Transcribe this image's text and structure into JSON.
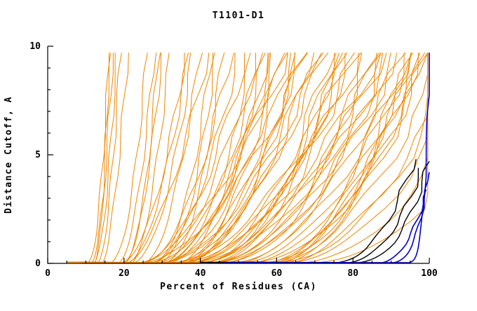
{
  "chart_data": {
    "type": "line",
    "title": "T1101-D1",
    "xlabel": "Percent of Residues (CA)",
    "ylabel": "Distance Cutoff, A",
    "xlim": [
      0,
      100
    ],
    "ylim": [
      0,
      10
    ],
    "x_ticks": [
      0,
      20,
      40,
      60,
      80,
      100
    ],
    "x_minor_step": 5,
    "y_ticks": [
      0,
      5,
      10
    ],
    "y_minor_step": 1,
    "grid": false,
    "legend": "none",
    "colors": {
      "orange": "#ee8500",
      "black": "#000000",
      "blue": "#0000cd"
    },
    "curve_format": "[x_start, x_liftoff, x_at_ymax, ymax(default 9.7), shape_exponent(default auto ~0.5)]",
    "fractions": [
      0.003,
      0.01,
      0.02,
      0.035,
      0.055,
      0.08,
      0.11,
      0.15,
      0.2,
      0.26,
      0.33,
      0.41,
      0.5,
      0.6,
      0.7,
      0.8,
      0.9,
      1.0
    ],
    "series": [
      {
        "name": "orange-predictions",
        "color": "#ee8500",
        "width": 1,
        "xcap": 99.6,
        "curves": [
          [
            8,
            10,
            16
          ],
          [
            9,
            11,
            17
          ],
          [
            10,
            12,
            18
          ],
          [
            8,
            13,
            19
          ],
          [
            11,
            14,
            21
          ],
          [
            7,
            12,
            16
          ],
          [
            8,
            16,
            26
          ],
          [
            10,
            18,
            28
          ],
          [
            9,
            20,
            30
          ],
          [
            12,
            22,
            32
          ],
          [
            11,
            19,
            29
          ],
          [
            6,
            18,
            36
          ],
          [
            8,
            22,
            38
          ],
          [
            10,
            25,
            40
          ],
          [
            7,
            20,
            42
          ],
          [
            9,
            28,
            44
          ],
          [
            12,
            30,
            46
          ],
          [
            8,
            24,
            48
          ],
          [
            10,
            27,
            50
          ],
          [
            6,
            21,
            37
          ],
          [
            11,
            26,
            43
          ],
          [
            5,
            22,
            52
          ],
          [
            7,
            26,
            54
          ],
          [
            9,
            30,
            56
          ],
          [
            11,
            34,
            58
          ],
          [
            6,
            24,
            60
          ],
          [
            8,
            28,
            62
          ],
          [
            10,
            32,
            64
          ],
          [
            12,
            36,
            66
          ],
          [
            7,
            25,
            68
          ],
          [
            9,
            29,
            70
          ],
          [
            5,
            27,
            55
          ],
          [
            8,
            31,
            57
          ],
          [
            10,
            35,
            61
          ],
          [
            6,
            23,
            63
          ],
          [
            11,
            33,
            65
          ],
          [
            7,
            28,
            67
          ],
          [
            9,
            34,
            69
          ],
          [
            12,
            30,
            59
          ],
          [
            5,
            30,
            72
          ],
          [
            7,
            34,
            74
          ],
          [
            9,
            38,
            76
          ],
          [
            11,
            42,
            78
          ],
          [
            6,
            32,
            80
          ],
          [
            8,
            36,
            82
          ],
          [
            10,
            40,
            84
          ],
          [
            12,
            44,
            86
          ],
          [
            7,
            35,
            88
          ],
          [
            9,
            39,
            90
          ],
          [
            5,
            33,
            73
          ],
          [
            8,
            37,
            75
          ],
          [
            10,
            41,
            79
          ],
          [
            6,
            34,
            81
          ],
          [
            11,
            43,
            85
          ],
          [
            7,
            36,
            87
          ],
          [
            9,
            40,
            89
          ],
          [
            12,
            38,
            77
          ],
          [
            5,
            40,
            91
          ],
          [
            7,
            45,
            92
          ],
          [
            9,
            50,
            93
          ],
          [
            11,
            55,
            94
          ],
          [
            6,
            48,
            95
          ],
          [
            8,
            52,
            96
          ],
          [
            10,
            56,
            97
          ],
          [
            12,
            60,
            98
          ],
          [
            7,
            50,
            99
          ],
          [
            9,
            54,
            100
          ],
          [
            5,
            46,
            95
          ],
          [
            8,
            58,
            97
          ],
          [
            10,
            62,
            99
          ],
          [
            6,
            55,
            108
          ],
          [
            8,
            60,
            112
          ],
          [
            10,
            65,
            118
          ],
          [
            7,
            58,
            105
          ],
          [
            9,
            62,
            110
          ],
          [
            11,
            66,
            122
          ]
        ]
      },
      {
        "name": "black-predictions",
        "color": "#000000",
        "width": 1.4,
        "xcap": 100,
        "curves": [
          [
            40,
            72,
            96,
            4.8,
            0.38
          ],
          [
            44,
            76,
            98,
            4.4,
            0.4
          ],
          [
            42,
            78,
            100,
            4.7,
            0.35
          ]
        ]
      },
      {
        "name": "blue-predictions",
        "color": "#0000cd",
        "width": 1.6,
        "xcap": 100,
        "curves": [
          [
            48,
            90,
            100,
            9.7,
            0.13
          ],
          [
            50,
            86,
            99.5,
            3.4,
            0.42
          ],
          [
            46,
            88,
            100,
            4.2,
            0.3
          ]
        ]
      }
    ]
  }
}
